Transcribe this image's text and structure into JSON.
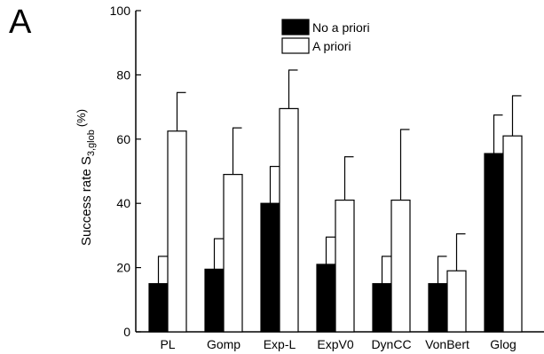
{
  "panel_label": "A",
  "chart_data": {
    "type": "bar",
    "categories": [
      "PL",
      "Gomp",
      "Exp-L",
      "ExpV0",
      "DynCC",
      "VonBert",
      "Glog"
    ],
    "series": [
      {
        "name": "No a priori",
        "values": [
          15,
          19.5,
          40,
          21,
          15,
          15,
          55.5
        ],
        "errors": [
          8.5,
          9.5,
          11.5,
          8.5,
          8.5,
          8.5,
          12
        ],
        "color": "#000000"
      },
      {
        "name": "A priori",
        "values": [
          62.5,
          49,
          69.5,
          41,
          41,
          19,
          61
        ],
        "errors": [
          12,
          14.5,
          12,
          13.5,
          22,
          11.5,
          12.5
        ],
        "color": "#ffffff"
      }
    ],
    "title": "",
    "xlabel": "",
    "ylabel_main": "Success rate S",
    "ylabel_sub": "3,glob",
    "ylabel_unit": "(%)",
    "ylim": [
      0,
      100
    ],
    "yticks": [
      0,
      20,
      40,
      60,
      80,
      100
    ],
    "legend_position": "top-center",
    "error_bars": "upper only"
  }
}
